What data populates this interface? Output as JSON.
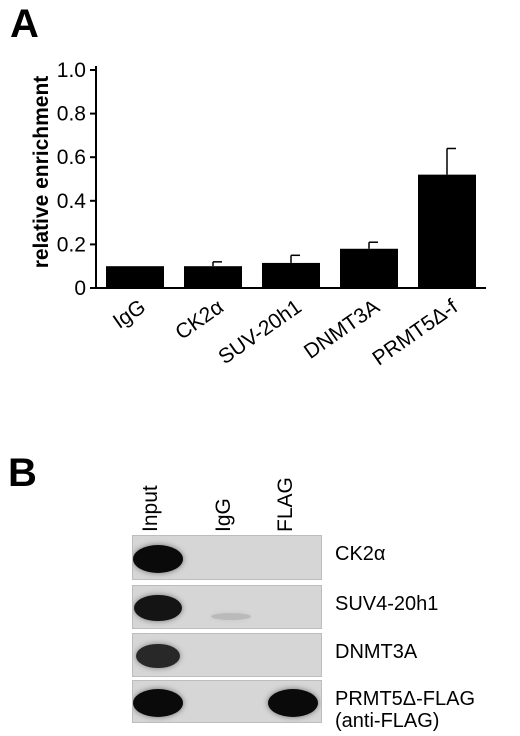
{
  "panels": {
    "a": {
      "letter": "A"
    },
    "b": {
      "letter": "B"
    }
  },
  "chart_data": {
    "type": "bar",
    "ylabel": "relative enrichment",
    "xlabel": "",
    "title": "",
    "ylim": [
      0,
      1.0
    ],
    "yticks": [
      "0",
      "0.2",
      "0.4",
      "0.6",
      "0.8",
      "1.0"
    ],
    "categories": [
      "IgG",
      "CK2α",
      "SUV-20h1",
      "DNMT3A",
      "PRMT5Δ-f"
    ],
    "values": [
      0.1,
      0.1,
      0.115,
      0.18,
      0.52
    ],
    "errors": [
      0.0,
      0.02,
      0.035,
      0.03,
      0.12
    ],
    "bar_color": "#000000",
    "grid": false
  },
  "blot": {
    "lanes": [
      "Input",
      "IgG",
      "FLAG"
    ],
    "rows": [
      {
        "label": "CK2α",
        "label2": "",
        "bands": [
          1.0,
          0.0,
          0.0
        ]
      },
      {
        "label": "SUV4-20h1",
        "label2": "",
        "bands": [
          0.95,
          0.12,
          0.0
        ]
      },
      {
        "label": "DNMT3A",
        "label2": "",
        "bands": [
          0.85,
          0.0,
          0.0
        ]
      },
      {
        "label": "PRMT5Δ-FLAG",
        "label2": "(anti-FLAG)",
        "bands": [
          1.0,
          0.0,
          1.0
        ]
      }
    ],
    "background": "#d6d6d6"
  }
}
